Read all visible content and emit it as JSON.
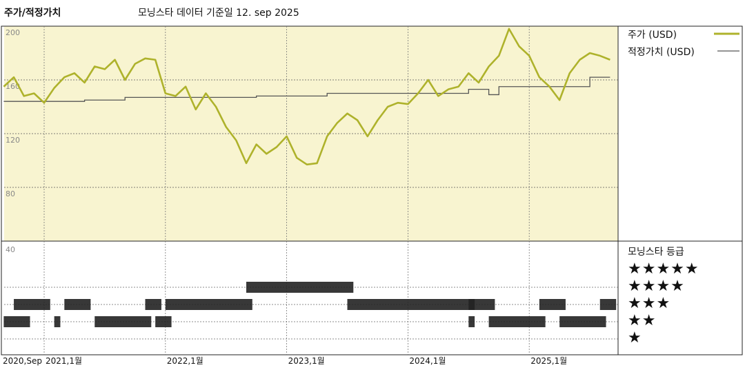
{
  "header": {
    "title": "주가/적정가치",
    "subtitle": "모닝스타 데이터 기준일 12. sep 2025"
  },
  "legend": {
    "price_label": "주가 (USD)",
    "fair_label": "적정가치 (USD)",
    "price_color": "#aeb22b",
    "fair_color": "#555555"
  },
  "rating": {
    "title": "모닝스타 등급",
    "star_rows": [
      "★★★★★",
      "★★★★",
      "★★★",
      "★★",
      "★"
    ]
  },
  "chart_data": {
    "type": "line",
    "ylim": [
      40,
      200
    ],
    "yticks": [
      200,
      160,
      120,
      80,
      40
    ],
    "xticks": [
      {
        "label": "2020,Sep",
        "date": "2020-09"
      },
      {
        "label": "2021,1월",
        "date": "2021-01"
      },
      {
        "label": "2022,1월",
        "date": "2022-01"
      },
      {
        "label": "2023,1월",
        "date": "2023-01"
      },
      {
        "label": "2024,1월",
        "date": "2024-01"
      },
      {
        "label": "2025,1월",
        "date": "2025-01"
      }
    ],
    "series": [
      {
        "name": "주가 (USD)",
        "color": "#aeb22b",
        "points": [
          [
            "2020-09",
            155
          ],
          [
            "2020-10",
            162
          ],
          [
            "2020-11",
            148
          ],
          [
            "2020-12",
            150
          ],
          [
            "2021-01",
            143
          ],
          [
            "2021-02",
            154
          ],
          [
            "2021-03",
            162
          ],
          [
            "2021-04",
            165
          ],
          [
            "2021-05",
            158
          ],
          [
            "2021-06",
            170
          ],
          [
            "2021-07",
            168
          ],
          [
            "2021-08",
            175
          ],
          [
            "2021-09",
            160
          ],
          [
            "2021-10",
            172
          ],
          [
            "2021-11",
            176
          ],
          [
            "2021-12",
            175
          ],
          [
            "2022-01",
            150
          ],
          [
            "2022-02",
            148
          ],
          [
            "2022-03",
            155
          ],
          [
            "2022-04",
            138
          ],
          [
            "2022-05",
            150
          ],
          [
            "2022-06",
            140
          ],
          [
            "2022-07",
            125
          ],
          [
            "2022-08",
            115
          ],
          [
            "2022-09",
            98
          ],
          [
            "2022-10",
            112
          ],
          [
            "2022-11",
            105
          ],
          [
            "2022-12",
            110
          ],
          [
            "2023-01",
            118
          ],
          [
            "2023-02",
            102
          ],
          [
            "2023-03",
            97
          ],
          [
            "2023-04",
            98
          ],
          [
            "2023-05",
            118
          ],
          [
            "2023-06",
            128
          ],
          [
            "2023-07",
            135
          ],
          [
            "2023-08",
            130
          ],
          [
            "2023-09",
            118
          ],
          [
            "2023-10",
            130
          ],
          [
            "2023-11",
            140
          ],
          [
            "2023-12",
            143
          ],
          [
            "2024-01",
            142
          ],
          [
            "2024-02",
            150
          ],
          [
            "2024-03",
            160
          ],
          [
            "2024-04",
            148
          ],
          [
            "2024-05",
            153
          ],
          [
            "2024-06",
            155
          ],
          [
            "2024-07",
            165
          ],
          [
            "2024-08",
            158
          ],
          [
            "2024-09",
            170
          ],
          [
            "2024-10",
            178
          ],
          [
            "2024-11",
            198
          ],
          [
            "2024-12",
            185
          ],
          [
            "2025-01",
            178
          ],
          [
            "2025-02",
            162
          ],
          [
            "2025-03",
            155
          ],
          [
            "2025-04",
            145
          ],
          [
            "2025-05",
            165
          ],
          [
            "2025-06",
            175
          ],
          [
            "2025-07",
            180
          ],
          [
            "2025-08",
            178
          ],
          [
            "2025-09",
            175
          ]
        ]
      },
      {
        "name": "적정가치 (USD)",
        "color": "#555555",
        "points": [
          [
            "2020-09",
            144
          ],
          [
            "2021-04",
            144
          ],
          [
            "2021-05",
            145
          ],
          [
            "2021-08",
            145
          ],
          [
            "2021-09",
            147
          ],
          [
            "2022-09",
            147
          ],
          [
            "2022-10",
            148
          ],
          [
            "2023-04",
            148
          ],
          [
            "2023-05",
            150
          ],
          [
            "2024-06",
            150
          ],
          [
            "2024-07",
            153
          ],
          [
            "2024-08",
            153
          ],
          [
            "2024-09",
            149
          ],
          [
            "2024-10",
            155
          ],
          [
            "2025-06",
            155
          ],
          [
            "2025-07",
            162
          ],
          [
            "2025-09",
            162
          ]
        ]
      }
    ],
    "rating_periods": [
      {
        "stars": 2,
        "start": "2020-09",
        "end": "2020-11"
      },
      {
        "stars": 3,
        "start": "2020-10",
        "end": "2021-01"
      },
      {
        "stars": 2,
        "start": "2021-02",
        "end": "2021-02"
      },
      {
        "stars": 3,
        "start": "2021-03",
        "end": "2021-05"
      },
      {
        "stars": 2,
        "start": "2021-06",
        "end": "2021-11"
      },
      {
        "stars": 3,
        "start": "2021-11",
        "end": "2021-12"
      },
      {
        "stars": 2,
        "start": "2021-12",
        "end": "2022-01"
      },
      {
        "stars": 3,
        "start": "2022-01",
        "end": "2022-09"
      },
      {
        "stars": 4,
        "start": "2022-09",
        "end": "2023-07"
      },
      {
        "stars": 3,
        "start": "2023-07",
        "end": "2024-07"
      },
      {
        "stars": 2,
        "start": "2024-07",
        "end": "2024-07"
      },
      {
        "stars": 3,
        "start": "2024-07",
        "end": "2024-09"
      },
      {
        "stars": 2,
        "start": "2024-09",
        "end": "2025-02"
      },
      {
        "stars": 3,
        "start": "2025-02",
        "end": "2025-04"
      },
      {
        "stars": 2,
        "start": "2025-04",
        "end": "2025-08"
      },
      {
        "stars": 3,
        "start": "2025-08",
        "end": "2025-09"
      }
    ]
  }
}
